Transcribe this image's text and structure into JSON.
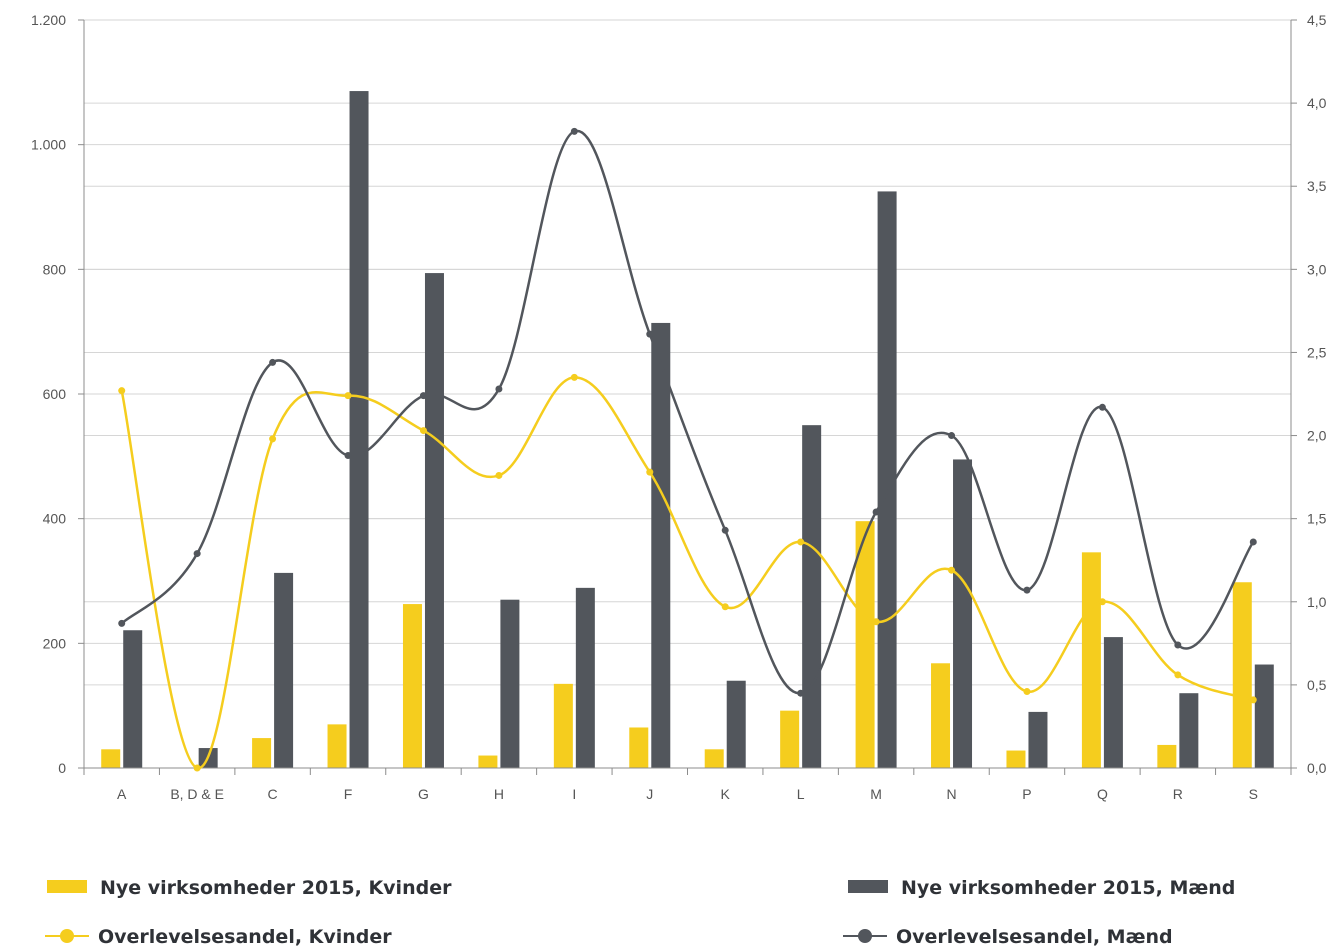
{
  "chart_data": {
    "type": "bar",
    "categories": [
      "A",
      "B, D & E",
      "C",
      "F",
      "G",
      "H",
      "I",
      "J",
      "K",
      "L",
      "M",
      "N",
      "P",
      "Q",
      "R",
      "S"
    ],
    "y_left": {
      "range": [
        0,
        1200
      ],
      "ticks": [
        0,
        200,
        400,
        600,
        800,
        1000,
        1200
      ],
      "tick_labels": [
        "0",
        "200",
        "400",
        "600",
        "800",
        "1.000",
        "1.200"
      ]
    },
    "y_right": {
      "range": [
        0,
        4.5
      ],
      "ticks": [
        0,
        0.5,
        1.0,
        1.5,
        2.0,
        2.5,
        3.0,
        3.5,
        4.0,
        4.5
      ],
      "tick_labels": [
        "0,0",
        "0,5",
        "1,0",
        "1,5",
        "2,0",
        "2,5",
        "3,0",
        "3,5",
        "4,0",
        "4,5"
      ]
    },
    "grid": true,
    "legend_position": "bottom",
    "series": [
      {
        "name": "Nye virksomheder 2015, Kvinder",
        "type": "bar",
        "axis": "left",
        "color": "#f5cd1e",
        "values": [
          30,
          0,
          48,
          70,
          263,
          20,
          135,
          65,
          30,
          92,
          396,
          168,
          28,
          346,
          37,
          298
        ]
      },
      {
        "name": "Nye virksomheder 2015, Mænd",
        "type": "bar",
        "axis": "left",
        "color": "#52565c",
        "values": [
          221,
          32,
          313,
          1086,
          794,
          270,
          289,
          714,
          140,
          550,
          925,
          495,
          90,
          210,
          120,
          166
        ]
      },
      {
        "name": "Overlevelsesandel, Kvinder",
        "type": "line",
        "axis": "right",
        "color": "#f5cd1e",
        "values": [
          2.27,
          0.0,
          1.98,
          2.24,
          2.03,
          1.76,
          2.35,
          1.78,
          0.97,
          1.36,
          0.88,
          1.19,
          0.46,
          1.0,
          0.56,
          0.41
        ]
      },
      {
        "name": "Overlevelsesandel, Mænd",
        "type": "line",
        "axis": "right",
        "color": "#52565c",
        "values": [
          0.87,
          1.29,
          2.44,
          1.88,
          2.24,
          2.28,
          3.83,
          2.61,
          1.43,
          0.45,
          1.54,
          2.0,
          1.07,
          2.17,
          0.74,
          1.36
        ]
      }
    ]
  }
}
